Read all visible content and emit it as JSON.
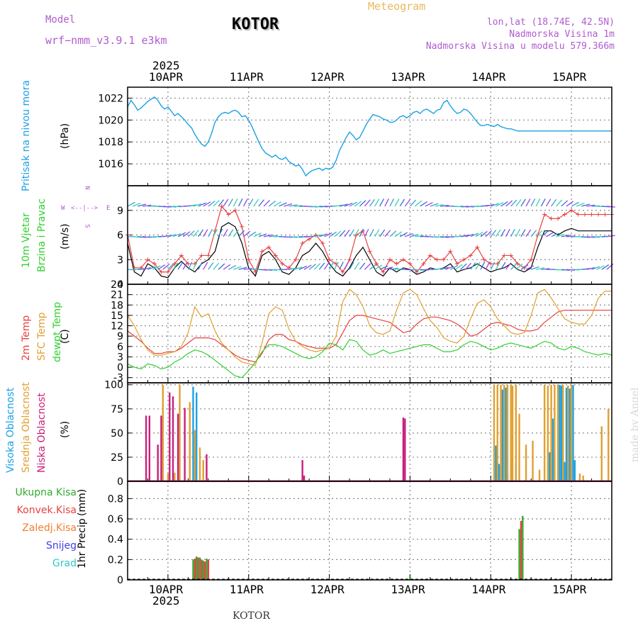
{
  "header": {
    "model_label": "Model",
    "model_name": "wrf−nmm_v3.9.1 e3km",
    "title": "KOTOR",
    "meteogram": "Meteogram",
    "lonlat": "lon,lat (18.74E, 42.5N)",
    "elevation": "Nadmorska Visina 1m",
    "model_elevation": "Nadmorska Visina u modelu 579.366m"
  },
  "footer": {
    "station": "KOTOR",
    "made_by": "made by Angel"
  },
  "time_axis": {
    "year": "2025",
    "day_labels": [
      "10APR",
      "11APR",
      "12APR",
      "13APR",
      "14APR",
      "15APR"
    ],
    "day_positions_hours": [
      12,
      36,
      60,
      84,
      108,
      132
    ],
    "x_range_hours": [
      0,
      144
    ]
  },
  "compass": {
    "n": "N",
    "s": "S",
    "e": "E",
    "w": "W"
  },
  "colors": {
    "pressure": "#1ba1e6",
    "temp2m": "#e84040",
    "sfc": "#e0a030",
    "dewpt": "#30d030",
    "cloud_high": "#1ba1e6",
    "cloud_mid": "#e0a030",
    "cloud_low": "#c8207a",
    "precip_total": "#33aa33",
    "precip_conv": "#e84040",
    "frame": "#000000"
  },
  "chart_data": [
    {
      "id": "pressure",
      "type": "line",
      "ylabel": "Pritisak na nivou mora",
      "unit": "(hPa)",
      "ylim": [
        1014,
        1023
      ],
      "yticks": [
        1016,
        1018,
        1020,
        1022
      ],
      "x": [
        0,
        1,
        2,
        3,
        4,
        5,
        6,
        7,
        8,
        9,
        10,
        11,
        12,
        13,
        14,
        15,
        16,
        17,
        18,
        19,
        20,
        21,
        22,
        23,
        24,
        25,
        26,
        27,
        28,
        29,
        30,
        31,
        32,
        33,
        34,
        35,
        36,
        37,
        38,
        39,
        40,
        41,
        42,
        43,
        44,
        45,
        46,
        47,
        48,
        49,
        50,
        51,
        52,
        53,
        54,
        55,
        56,
        57,
        58,
        59,
        60,
        61,
        62,
        63,
        64,
        65,
        66,
        67,
        68,
        69,
        70,
        71,
        72,
        73,
        74,
        75,
        76,
        77,
        78,
        79,
        80,
        81,
        82,
        83,
        84,
        85,
        86,
        87,
        88,
        89,
        90,
        91,
        92,
        93,
        94,
        95,
        96,
        97,
        98,
        99,
        100,
        101,
        102,
        103,
        104,
        105,
        106,
        107,
        108,
        109,
        110,
        111,
        112,
        113,
        114,
        115,
        116,
        117,
        118,
        119,
        120,
        121,
        122,
        123,
        124,
        125,
        126,
        127,
        128,
        129,
        130,
        131,
        132,
        133,
        134,
        135,
        136,
        137,
        138,
        139,
        140,
        141,
        142,
        143,
        144
      ],
      "values": [
        1021.2,
        1021.8,
        1021.4,
        1020.9,
        1021.1,
        1021.4,
        1021.7,
        1021.9,
        1022.1,
        1021.8,
        1021.3,
        1021.0,
        1021.2,
        1020.8,
        1020.4,
        1020.6,
        1020.3,
        1020.0,
        1019.6,
        1019.3,
        1018.7,
        1018.2,
        1017.8,
        1017.6,
        1018.0,
        1018.8,
        1019.8,
        1020.3,
        1020.6,
        1020.7,
        1020.6,
        1020.8,
        1020.9,
        1020.7,
        1020.3,
        1020.4,
        1020.0,
        1019.4,
        1018.7,
        1018.0,
        1017.4,
        1017.0,
        1016.8,
        1016.6,
        1016.8,
        1016.5,
        1016.4,
        1016.6,
        1016.2,
        1016.0,
        1015.8,
        1015.9,
        1015.5,
        1014.9,
        1015.2,
        1015.4,
        1015.5,
        1015.6,
        1015.4,
        1015.6,
        1015.5,
        1015.7,
        1016.3,
        1017.2,
        1017.8,
        1018.4,
        1018.9,
        1018.6,
        1018.2,
        1018.4,
        1019.0,
        1019.6,
        1020.1,
        1020.5,
        1020.4,
        1020.3,
        1020.1,
        1020.0,
        1019.8,
        1019.8,
        1020.0,
        1020.3,
        1020.4,
        1020.2,
        1020.4,
        1020.7,
        1020.8,
        1020.6,
        1020.9,
        1021.0,
        1020.8,
        1020.6,
        1020.9,
        1021.0,
        1021.6,
        1021.8,
        1021.3,
        1020.9,
        1020.6,
        1020.7,
        1021.0,
        1020.9,
        1020.6,
        1020.2,
        1019.8,
        1019.5,
        1019.5,
        1019.6,
        1019.5,
        1019.4,
        1019.6,
        1019.4,
        1019.3,
        1019.2,
        1019.2,
        1019.1,
        1019.0,
        1019.0,
        1019.0,
        1019.0,
        1019.0,
        1019.0,
        1019.0,
        1019.0,
        1019.0,
        1019.0,
        1019.0,
        1019.0,
        1019.0,
        1019.0,
        1019.0,
        1019.0,
        1019.0,
        1019.0,
        1019.0,
        1019.0,
        1019.0,
        1019.0,
        1019.0,
        1019.0,
        1019.0,
        1019.0,
        1019.0,
        1019.0,
        1019.0
      ]
    },
    {
      "id": "wind",
      "type": "line",
      "ylabel": "10m Vjetar",
      "ylabel2": "Brzina i Pravac",
      "unit": "(m/s)",
      "ylim": [
        0,
        12
      ],
      "yticks": [
        0,
        3,
        6,
        9
      ],
      "x_step_hours": 2,
      "series": [
        {
          "name": "speed",
          "color": "#000000",
          "values": [
            5.0,
            1.5,
            1.0,
            2.5,
            2.0,
            1.0,
            0.8,
            2.0,
            2.8,
            2.0,
            1.5,
            2.5,
            3.0,
            4.0,
            7.0,
            7.5,
            7.0,
            5.0,
            2.0,
            1.0,
            3.5,
            4.0,
            3.0,
            1.5,
            1.2,
            2.0,
            3.5,
            4.0,
            5.0,
            4.0,
            2.5,
            1.5,
            1.0,
            2.0,
            3.5,
            4.5,
            3.0,
            1.5,
            1.0,
            2.0,
            1.5,
            2.0,
            1.8,
            1.2,
            1.5,
            2.0,
            1.8,
            2.0,
            2.5,
            1.5,
            1.8,
            2.0,
            2.5,
            2.0,
            1.5,
            1.8,
            2.0,
            2.5,
            1.8,
            1.5,
            2.0,
            4.5,
            6.5,
            6.5,
            6.0,
            6.5,
            6.8,
            6.5,
            6.5,
            6.5,
            6.5,
            6.5,
            6.5
          ]
        },
        {
          "name": "gust",
          "color": "#e84040",
          "values": [
            6.0,
            2.0,
            2.0,
            3.0,
            2.5,
            1.5,
            1.5,
            2.5,
            3.5,
            2.5,
            2.5,
            3.5,
            3.5,
            6.5,
            9.5,
            8.5,
            9.0,
            7.0,
            3.0,
            1.5,
            4.0,
            4.5,
            3.5,
            2.5,
            2.0,
            3.0,
            5.0,
            5.5,
            6.0,
            5.0,
            3.0,
            2.5,
            1.5,
            3.0,
            6.0,
            6.5,
            4.0,
            2.5,
            1.5,
            3.0,
            2.5,
            3.0,
            2.5,
            1.5,
            2.5,
            3.5,
            3.0,
            3.0,
            4.0,
            2.5,
            3.0,
            3.5,
            4.5,
            3.0,
            2.5,
            2.5,
            3.5,
            3.5,
            2.5,
            2.0,
            3.0,
            6.0,
            8.5,
            8.0,
            8.0,
            8.5,
            9.0,
            8.5,
            8.5,
            8.5,
            8.5,
            8.5,
            8.5
          ]
        }
      ]
    },
    {
      "id": "temperature",
      "type": "line",
      "ylabel": "2m Temp",
      "ylabel2": "SFC Temp",
      "ylabel3": "dewpt Temp",
      "unit": "(C)",
      "ylim": [
        -4.5,
        24
      ],
      "yticks": [
        -3,
        0,
        3,
        6,
        9,
        12,
        15,
        18,
        21,
        24
      ],
      "x_step_hours": 2,
      "series": [
        {
          "name": "2m Temp",
          "color": "#e84040",
          "values": [
            10.5,
            9.0,
            7.5,
            5.5,
            4.0,
            4.0,
            4.5,
            4.5,
            5.5,
            7.0,
            8.5,
            8.5,
            8.5,
            8.0,
            6.5,
            5.0,
            3.5,
            2.5,
            2.0,
            1.5,
            4.0,
            8.0,
            9.5,
            9.5,
            8.0,
            7.5,
            6.5,
            6.0,
            5.5,
            5.5,
            5.5,
            6.5,
            10.0,
            13.5,
            15.0,
            15.0,
            14.5,
            14.0,
            13.5,
            13.0,
            11.5,
            10.0,
            10.5,
            12.5,
            14.0,
            14.5,
            14.5,
            14.0,
            13.5,
            12.5,
            11.0,
            9.0,
            9.5,
            11.0,
            12.5,
            13.0,
            12.5,
            12.0,
            11.0,
            10.5,
            10.5,
            11.0,
            13.0,
            14.5,
            16.0,
            16.5,
            16.5,
            16.5,
            16.5,
            16.5,
            16.5,
            16.5,
            16.5
          ]
        },
        {
          "name": "SFC Temp",
          "color": "#e0a030",
          "values": [
            15.0,
            12.0,
            8.0,
            5.0,
            3.5,
            3.5,
            4.0,
            4.5,
            6.0,
            10.0,
            17.5,
            14.5,
            15.5,
            10.5,
            7.0,
            5.0,
            3.0,
            1.5,
            1.0,
            0.5,
            7.0,
            15.5,
            17.5,
            16.5,
            11.0,
            7.5,
            6.0,
            5.0,
            4.5,
            5.0,
            5.5,
            9.0,
            19.0,
            22.5,
            21.0,
            17.5,
            12.0,
            10.0,
            9.5,
            10.5,
            16.5,
            21.5,
            22.5,
            21.0,
            17.0,
            13.5,
            11.5,
            8.5,
            7.5,
            7.0,
            9.0,
            14.0,
            18.5,
            19.5,
            17.5,
            14.0,
            12.0,
            10.0,
            9.5,
            10.0,
            15.0,
            21.5,
            22.5,
            20.0,
            17.0,
            14.0,
            13.0,
            12.5,
            12.5,
            15.0,
            20.0,
            22.0,
            22.0
          ]
        },
        {
          "name": "dewpt Temp",
          "color": "#30d030",
          "values": [
            1.0,
            0.0,
            -0.5,
            1.0,
            0.5,
            -0.5,
            0.0,
            1.5,
            2.5,
            4.0,
            5.0,
            4.5,
            3.5,
            2.0,
            0.5,
            -1.0,
            -2.5,
            -3.0,
            -1.0,
            1.5,
            4.5,
            6.5,
            6.5,
            6.0,
            5.0,
            4.0,
            3.0,
            2.5,
            3.0,
            4.5,
            7.0,
            6.5,
            5.0,
            8.0,
            7.5,
            5.0,
            3.5,
            4.0,
            5.0,
            4.0,
            4.5,
            5.0,
            5.5,
            6.0,
            6.5,
            6.5,
            5.5,
            4.5,
            4.5,
            5.0,
            6.5,
            7.5,
            7.0,
            6.0,
            5.0,
            5.5,
            6.5,
            7.0,
            6.5,
            6.0,
            5.5,
            6.5,
            7.5,
            7.0,
            5.5,
            5.0,
            6.0,
            5.5,
            4.5,
            4.0,
            3.5,
            4.0,
            3.5
          ]
        }
      ]
    },
    {
      "id": "clouds",
      "type": "bar",
      "ylabel": "Visoka Oblacnost",
      "ylabel2": "Srednja Oblacnost",
      "ylabel3": "Niska Oblacnost",
      "unit": "(%)",
      "ylim": [
        0,
        102
      ],
      "yticks": [
        0,
        25,
        50,
        75,
        100
      ],
      "series": [
        {
          "name": "Visoka Oblacnost",
          "color": "#1ba1e6",
          "points": [
            [
              19.5,
              98
            ],
            [
              20.5,
              92
            ],
            [
              109.5,
              37
            ],
            [
              110.0,
              20
            ],
            [
              110.5,
              18
            ],
            [
              111.5,
              95
            ],
            [
              112.5,
              97
            ],
            [
              113.0,
              8
            ],
            [
              114.0,
              20
            ],
            [
              115.5,
              18
            ],
            [
              125.5,
              30
            ],
            [
              126.0,
              32
            ],
            [
              126.5,
              65
            ],
            [
              127.0,
              30
            ],
            [
              128.0,
              99
            ],
            [
              128.5,
              100
            ],
            [
              129.0,
              99
            ],
            [
              130.0,
              20
            ],
            [
              130.5,
              97
            ],
            [
              131.0,
              99
            ],
            [
              131.5,
              96
            ],
            [
              132.5,
              100
            ],
            [
              133.0,
              22
            ]
          ]
        },
        {
          "name": "Srednja Oblacnost",
          "color": "#e0a030",
          "points": [
            [
              10.5,
              100
            ],
            [
              12.0,
              8
            ],
            [
              14.0,
              9
            ],
            [
              15.5,
              100
            ],
            [
              18.5,
              82
            ],
            [
              20.0,
              53
            ],
            [
              21.5,
              35
            ],
            [
              22.5,
              22
            ],
            [
              109.0,
              100
            ],
            [
              110.0,
              100
            ],
            [
              111.0,
              100
            ],
            [
              112.0,
              100
            ],
            [
              113.0,
              100
            ],
            [
              114.0,
              100
            ],
            [
              114.5,
              99
            ],
            [
              115.5,
              100
            ],
            [
              116.5,
              70
            ],
            [
              118.5,
              38
            ],
            [
              120.5,
              42
            ],
            [
              122.5,
              12
            ],
            [
              124.0,
              100
            ],
            [
              125.0,
              99
            ],
            [
              126.0,
              100
            ],
            [
              127.0,
              100
            ],
            [
              128.0,
              100
            ],
            [
              129.5,
              100
            ],
            [
              131.0,
              99
            ],
            [
              132.0,
              100
            ],
            [
              134.5,
              8
            ],
            [
              135.5,
              6
            ],
            [
              141.0,
              57
            ],
            [
              143.0,
              75
            ]
          ]
        },
        {
          "name": "Niska Oblacnost",
          "color": "#c8207a",
          "points": [
            [
              5.5,
              68
            ],
            [
              6.5,
              68
            ],
            [
              9.0,
              38
            ],
            [
              10.0,
              68
            ],
            [
              12.5,
              92
            ],
            [
              13.5,
              88
            ],
            [
              15.0,
              70
            ],
            [
              17.0,
              76
            ],
            [
              23.5,
              28
            ],
            [
              52.0,
              22
            ],
            [
              52.5,
              6
            ],
            [
              82.0,
              66
            ],
            [
              82.5,
              65
            ]
          ]
        }
      ]
    },
    {
      "id": "precip",
      "type": "bar",
      "ylabel": "1hr Precip",
      "unit": "(mm)",
      "ylim": [
        0,
        0.97
      ],
      "yticks": [
        0,
        0.2,
        0.4,
        0.6,
        0.8
      ],
      "legend": [
        "Ukupna Kisa",
        "Konvek.Kisa",
        "Zaledj.Kisa",
        "Snijeg",
        "Grad"
      ],
      "legend_colors": [
        "#33aa33",
        "#e84040",
        "#f08030",
        "#4040e0",
        "#30c8c8"
      ],
      "series": [
        {
          "name": "Ukupna Kisa",
          "color": "#33aa33",
          "points": [
            [
              19.5,
              0.2
            ],
            [
              20.5,
              0.23
            ],
            [
              21.5,
              0.22
            ],
            [
              22.5,
              0.19
            ],
            [
              23.5,
              0.21
            ],
            [
              84.0,
              0.05
            ],
            [
              116.5,
              0.5
            ],
            [
              117.5,
              0.63
            ]
          ]
        },
        {
          "name": "Konvek.Kisa",
          "color": "#e84040",
          "points": [
            [
              20.0,
              0.21
            ],
            [
              21.0,
              0.22
            ],
            [
              22.0,
              0.2
            ],
            [
              23.0,
              0.18
            ],
            [
              24.0,
              0.2
            ],
            [
              117.0,
              0.58
            ]
          ]
        }
      ]
    }
  ]
}
